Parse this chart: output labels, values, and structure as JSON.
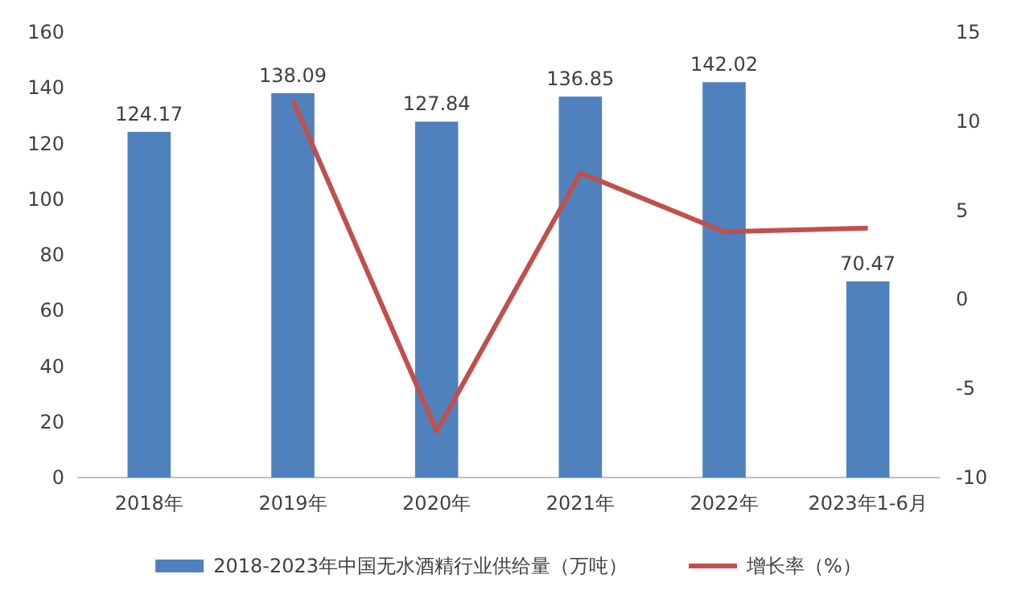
{
  "chart_data": {
    "type": "bar",
    "categories": [
      "2018年",
      "2019年",
      "2020年",
      "2021年",
      "2022年",
      "2023年1-6月"
    ],
    "series": [
      {
        "name": "2018-2023年中国无水酒精行业供给量（万吨）",
        "color": "#4f81bd",
        "values": [
          124.17,
          138.09,
          127.84,
          136.85,
          142.02,
          70.47
        ],
        "value_labels": [
          "124.17",
          "138.09",
          "127.84",
          "136.85",
          "142.02",
          "70.47"
        ]
      },
      {
        "name": "增长率（%）",
        "type": "line",
        "axis": "y2",
        "color": "#c0504d",
        "values": [
          null,
          11.2,
          -7.4,
          7.1,
          3.8,
          4.0
        ]
      }
    ],
    "ylim": [
      0,
      160
    ],
    "yticks": [
      0,
      20,
      40,
      60,
      80,
      100,
      120,
      140,
      160
    ],
    "y2lim": [
      -10,
      15
    ],
    "y2ticks": [
      -10,
      -5,
      0,
      5,
      10,
      15
    ],
    "legend": "bottom",
    "marker": "none",
    "line_style": "solid"
  }
}
